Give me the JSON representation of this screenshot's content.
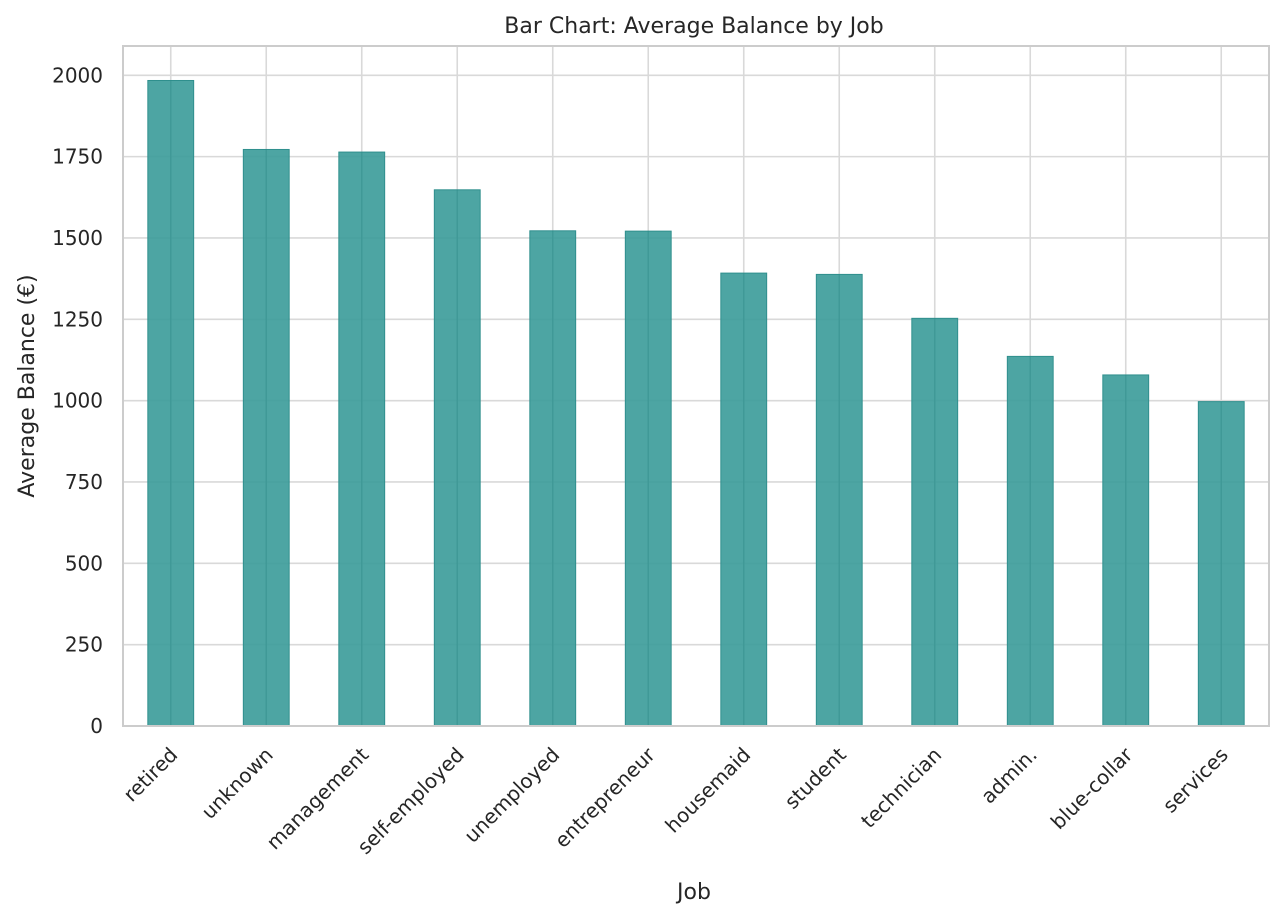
{
  "chart_data": {
    "type": "bar",
    "title": "Bar Chart: Average Balance by Job",
    "xlabel": "Job",
    "ylabel": "Average Balance (€)",
    "categories": [
      "retired",
      "unknown",
      "management",
      "self-employed",
      "unemployed",
      "entrepreneur",
      "housemaid",
      "student",
      "technician",
      "admin.",
      "blue-collar",
      "services"
    ],
    "values": [
      1984,
      1772,
      1764,
      1648,
      1522,
      1521,
      1392,
      1388,
      1253,
      1136,
      1079,
      997
    ],
    "ylim": [
      0,
      2090
    ],
    "yticks": [
      0,
      250,
      500,
      750,
      1000,
      1250,
      1500,
      1750,
      2000
    ],
    "grid": true,
    "legend": "none",
    "colors": {
      "bar": "#3a9b99",
      "bar_edge": "#2f8f8d",
      "grid": "#d9d9d9",
      "spine": "#cccccc",
      "text": "#262626"
    }
  }
}
